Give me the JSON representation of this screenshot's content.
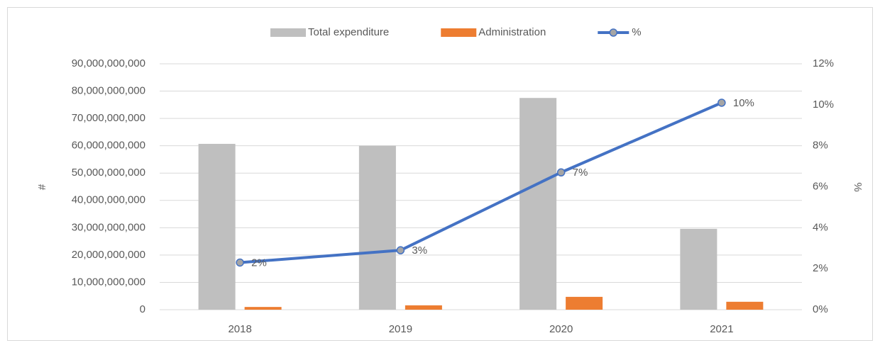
{
  "chart_data": {
    "type": "bar-line",
    "categories": [
      "2018",
      "2019",
      "2020",
      "2021"
    ],
    "series": [
      {
        "name": "Total expenditure",
        "color": "#bfbfbf",
        "type": "bar",
        "values": [
          60700000000,
          60000000000,
          77500000000,
          29600000000
        ]
      },
      {
        "name": "Administration",
        "color": "#ed7d31",
        "type": "bar",
        "values": [
          1000000000,
          1600000000,
          4700000000,
          2900000000
        ]
      },
      {
        "name": "%",
        "color": "#4472c4",
        "type": "line",
        "axis": "y2",
        "values": [
          2.3,
          2.9,
          6.7,
          10.1
        ],
        "value_labels": [
          "2%",
          "3%",
          "7%",
          "10%"
        ]
      }
    ],
    "ylabel": "#",
    "y2label": "%",
    "ylim": [
      0,
      90000000000
    ],
    "yticks": [
      0,
      {
        "value": 10000000000,
        "label": "10,000,000,000"
      },
      {
        "value": 20000000000,
        "label": "20,000,000,000"
      },
      {
        "value": 30000000000,
        "label": "30,000,000,000"
      },
      {
        "value": 40000000000,
        "label": "40,000,000,000"
      },
      {
        "value": 50000000000,
        "label": "50,000,000,000"
      },
      {
        "value": 60000000000,
        "label": "60,000,000,000"
      },
      {
        "value": 70000000000,
        "label": "70,000,000,000"
      },
      {
        "value": 80000000000,
        "label": "80,000,000,000"
      },
      {
        "value": 90000000000,
        "label": "90,000,000,000"
      }
    ],
    "y2lim": [
      0,
      12
    ],
    "y2ticks": [
      {
        "value": 0,
        "label": "0%"
      },
      {
        "value": 2,
        "label": "2%"
      },
      {
        "value": 4,
        "label": "4%"
      },
      {
        "value": 6,
        "label": "6%"
      },
      {
        "value": 8,
        "label": "8%"
      },
      {
        "value": 10,
        "label": "10%"
      },
      {
        "value": 12,
        "label": "12%"
      }
    ],
    "grid": true,
    "legend": "top"
  }
}
